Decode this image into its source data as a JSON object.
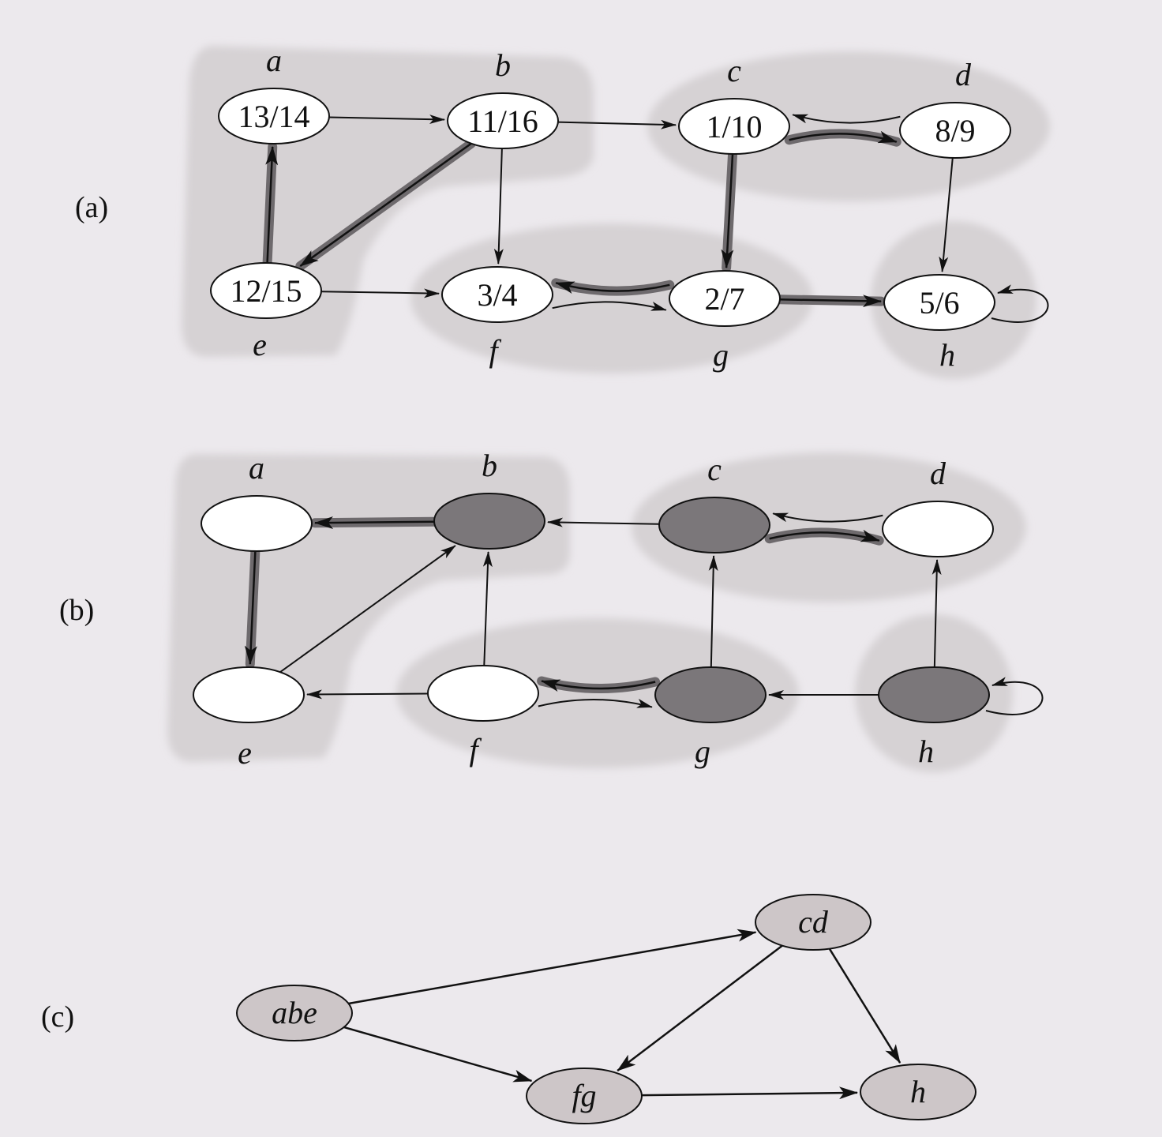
{
  "panels": [
    {
      "id": "a",
      "label": "(a)"
    },
    {
      "id": "b",
      "label": "(b)"
    },
    {
      "id": "c",
      "label": "(c)"
    }
  ],
  "vertex_names": [
    "a",
    "b",
    "c",
    "d",
    "e",
    "f",
    "g",
    "h"
  ],
  "panel_a": {
    "times": {
      "a": "13/14",
      "b": "11/16",
      "c": "1/10",
      "d": "8/9",
      "e": "12/15",
      "f": "3/4",
      "g": "2/7",
      "h": "5/6"
    },
    "edges": [
      [
        "a",
        "b"
      ],
      [
        "b",
        "c"
      ],
      [
        "b",
        "e"
      ],
      [
        "b",
        "f"
      ],
      [
        "c",
        "d"
      ],
      [
        "d",
        "c"
      ],
      [
        "c",
        "g"
      ],
      [
        "d",
        "h"
      ],
      [
        "e",
        "a"
      ],
      [
        "e",
        "f"
      ],
      [
        "f",
        "g"
      ],
      [
        "g",
        "f"
      ],
      [
        "g",
        "h"
      ],
      [
        "h",
        "h"
      ]
    ],
    "tree_edges": [
      [
        "b",
        "e"
      ],
      [
        "e",
        "a"
      ],
      [
        "c",
        "d"
      ],
      [
        "c",
        "g"
      ],
      [
        "g",
        "f"
      ],
      [
        "g",
        "h"
      ]
    ]
  },
  "panel_b": {
    "dark_vertices": [
      "b",
      "c",
      "g",
      "h"
    ],
    "edges": [
      [
        "b",
        "a"
      ],
      [
        "c",
        "b"
      ],
      [
        "e",
        "b"
      ],
      [
        "f",
        "b"
      ],
      [
        "d",
        "c"
      ],
      [
        "g",
        "c"
      ],
      [
        "h",
        "d"
      ],
      [
        "a",
        "e"
      ],
      [
        "f",
        "e"
      ],
      [
        "c",
        "d"
      ],
      [
        "g",
        "f"
      ],
      [
        "f",
        "g"
      ],
      [
        "h",
        "g"
      ],
      [
        "h",
        "h"
      ]
    ],
    "tree_edges": [
      [
        "b",
        "a"
      ],
      [
        "a",
        "e"
      ],
      [
        "c",
        "d"
      ],
      [
        "g",
        "f"
      ]
    ]
  },
  "panel_c": {
    "components": [
      {
        "id": "abe",
        "label": "abe"
      },
      {
        "id": "cd",
        "label": "cd"
      },
      {
        "id": "fg",
        "label": "fg"
      },
      {
        "id": "h",
        "label": "h"
      }
    ],
    "edges": [
      [
        "abe",
        "cd"
      ],
      [
        "abe",
        "fg"
      ],
      [
        "cd",
        "fg"
      ],
      [
        "cd",
        "h"
      ],
      [
        "fg",
        "h"
      ]
    ]
  },
  "colors": {
    "background": "#ece9ed",
    "region": "#d6d2d4",
    "node_fill": "#ffffff",
    "dark_node": "#7b777a",
    "component_fill": "#cdc6c8",
    "stroke": "#111111",
    "tree_edge": "#6e6a6d"
  }
}
